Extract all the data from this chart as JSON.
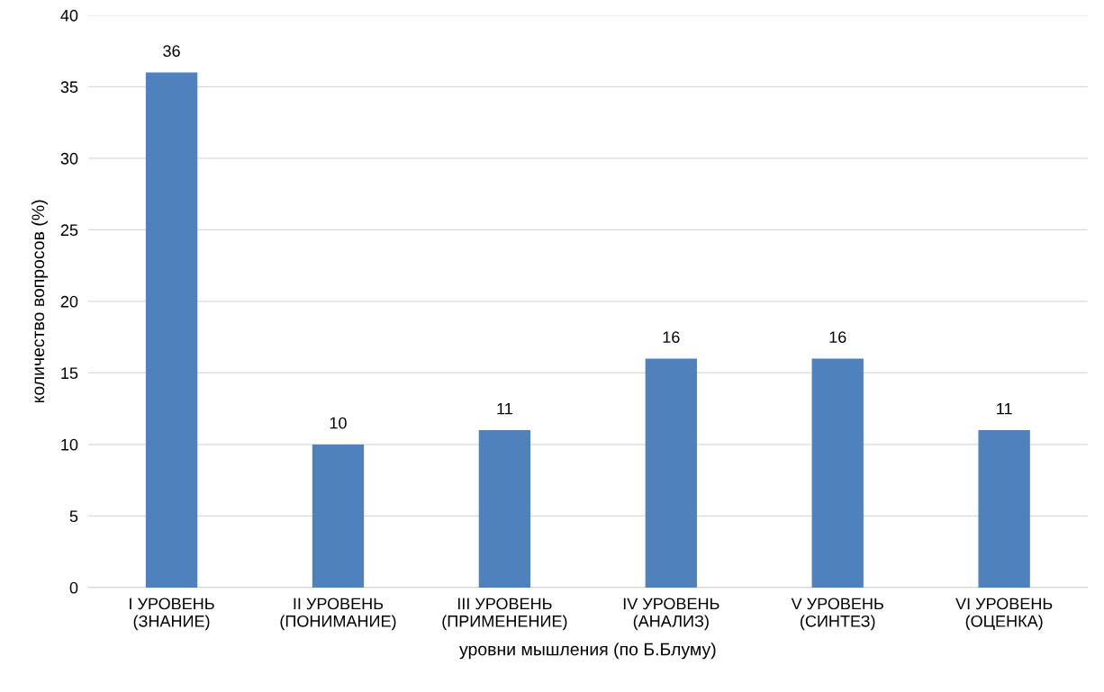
{
  "chart_data": {
    "type": "bar",
    "xlabel": "уровни мышления (по Б.Блуму)",
    "ylabel": "количество вопросов (%)",
    "categories": [
      "I УРОВЕНЬ\n(ЗНАНИЕ)",
      "II УРОВЕНЬ\n(ПОНИМАНИЕ)",
      "III УРОВЕНЬ\n(ПРИМЕНЕНИЕ)",
      "IV УРОВЕНЬ\n(АНАЛИЗ)",
      "V УРОВЕНЬ\n(СИНТЕЗ)",
      "VI УРОВЕНЬ\n(ОЦЕНКА)"
    ],
    "values": [
      36,
      10,
      11,
      16,
      16,
      11
    ],
    "color": "#4f81bd",
    "ylim": [
      0,
      40
    ],
    "yticks": [
      0,
      5,
      10,
      15,
      20,
      25,
      30,
      35,
      40
    ],
    "grid": "y",
    "data_labels": true,
    "legend": false
  }
}
